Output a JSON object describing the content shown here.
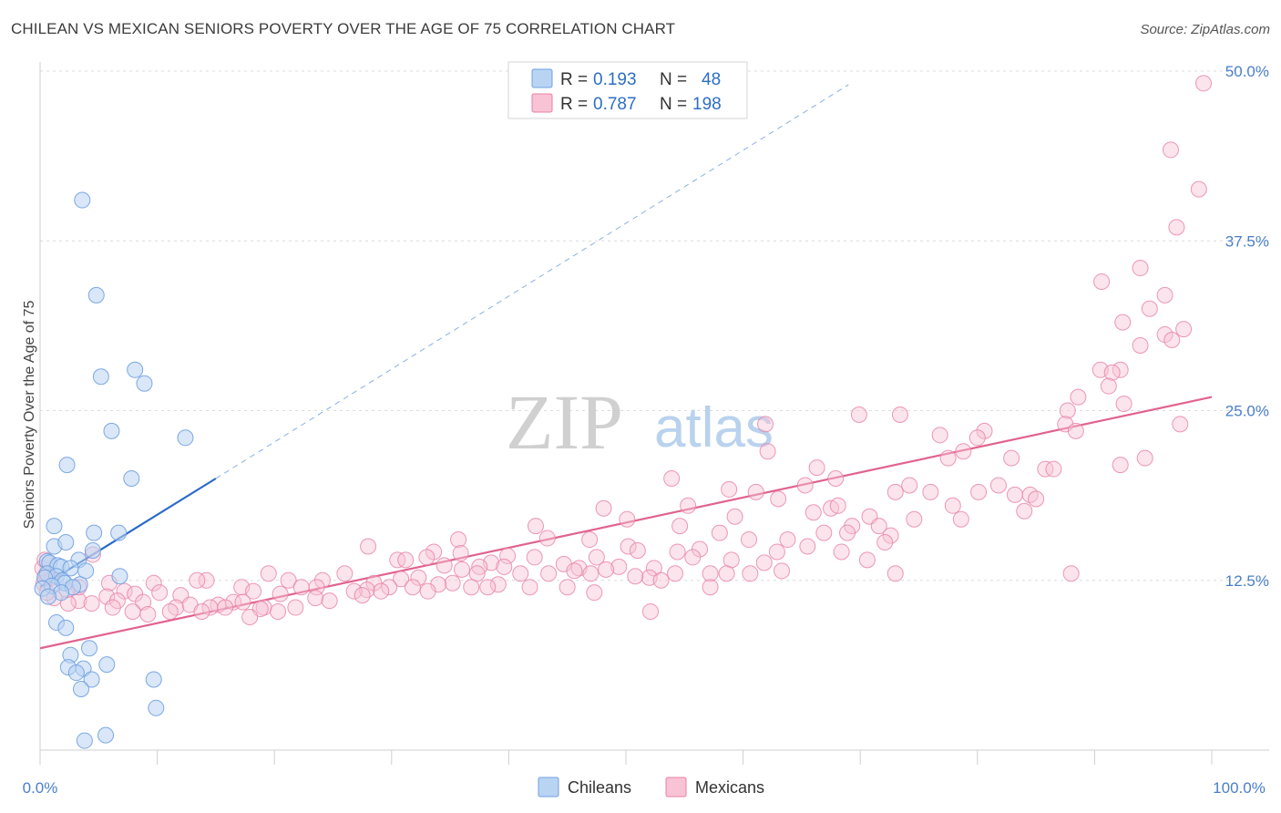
{
  "title": "CHILEAN VS MEXICAN SENIORS POVERTY OVER THE AGE OF 75 CORRELATION CHART",
  "source": "Source: ZipAtlas.com",
  "watermark": {
    "left": "ZIP",
    "right": "atlas"
  },
  "colors": {
    "chileans": "#6fa0e0",
    "chileans_fill": "#b9d4f3",
    "mexicans": "#e87fa5",
    "mexicans_fill": "#f7c3d5",
    "blue_line": "#2b6bc9",
    "pink_line": "#e0638f",
    "tick": "#4a7fc8"
  },
  "legend": [
    {
      "r_label": "R =",
      "r_value": "0.193",
      "n_label": "N =",
      "n_value": "48"
    },
    {
      "r_label": "R =",
      "r_value": "0.787",
      "n_label": "N =",
      "n_value": "198"
    }
  ],
  "bottom_legend": [
    "Chileans",
    "Mexicans"
  ],
  "chart_data": {
    "type": "scatter",
    "title": "CHILEAN VS MEXICAN SENIORS POVERTY OVER THE AGE OF 75 CORRELATION CHART",
    "xlabel": "",
    "ylabel": "Seniors Poverty Over the Age of 75",
    "xlim": [
      0,
      100
    ],
    "ylim": [
      0,
      50
    ],
    "x_tick_labels": [
      "0.0%",
      "100.0%"
    ],
    "y_tick_labels": [
      "12.5%",
      "25.0%",
      "37.5%",
      "50.0%"
    ],
    "y_ticks": [
      12.5,
      25,
      37.5,
      50
    ],
    "grid": true,
    "legend_position": "top-center",
    "series": [
      {
        "name": "Chileans",
        "r": 0.193,
        "n": 48,
        "trend": {
          "x": [
            0,
            15
          ],
          "y": [
            12.0,
            20.0
          ],
          "extended_to": [
            69,
            49.0
          ]
        },
        "points": [
          [
            3.6,
            40.5
          ],
          [
            4.8,
            33.5
          ],
          [
            5.2,
            27.5
          ],
          [
            8.1,
            28.0
          ],
          [
            8.9,
            27.0
          ],
          [
            6.1,
            23.5
          ],
          [
            12.4,
            23.0
          ],
          [
            2.3,
            21.0
          ],
          [
            7.8,
            20.0
          ],
          [
            1.2,
            16.5
          ],
          [
            4.6,
            16.0
          ],
          [
            6.7,
            16.0
          ],
          [
            1.2,
            15.0
          ],
          [
            2.2,
            15.3
          ],
          [
            4.5,
            14.7
          ],
          [
            3.3,
            14.0
          ],
          [
            0.6,
            13.9
          ],
          [
            0.8,
            13.8
          ],
          [
            1.5,
            13.6
          ],
          [
            1.8,
            13.5
          ],
          [
            2.6,
            13.4
          ],
          [
            3.9,
            13.2
          ],
          [
            0.6,
            13.0
          ],
          [
            1.4,
            12.8
          ],
          [
            6.8,
            12.8
          ],
          [
            0.4,
            12.7
          ],
          [
            1.9,
            12.5
          ],
          [
            2.1,
            12.3
          ],
          [
            3.4,
            12.2
          ],
          [
            1.0,
            12.1
          ],
          [
            2.8,
            12.0
          ],
          [
            0.2,
            11.9
          ],
          [
            1.8,
            11.6
          ],
          [
            0.7,
            11.3
          ],
          [
            1.4,
            9.4
          ],
          [
            2.2,
            9.0
          ],
          [
            4.2,
            7.5
          ],
          [
            2.6,
            7.0
          ],
          [
            5.7,
            6.3
          ],
          [
            2.4,
            6.1
          ],
          [
            3.7,
            6.0
          ],
          [
            3.1,
            5.7
          ],
          [
            4.4,
            5.2
          ],
          [
            9.7,
            5.2
          ],
          [
            3.5,
            4.5
          ],
          [
            9.9,
            3.1
          ],
          [
            5.6,
            1.1
          ],
          [
            3.8,
            0.7
          ]
        ]
      },
      {
        "name": "Mexicans",
        "r": 0.787,
        "n": 198,
        "trend": {
          "x": [
            0,
            100
          ],
          "y": [
            7.5,
            26.0
          ]
        },
        "points": [
          [
            99.3,
            49.1
          ],
          [
            96.5,
            44.2
          ],
          [
            98.9,
            41.3
          ],
          [
            97.0,
            38.5
          ],
          [
            93.9,
            35.5
          ],
          [
            90.6,
            34.5
          ],
          [
            96.0,
            33.5
          ],
          [
            94.7,
            32.5
          ],
          [
            92.4,
            31.5
          ],
          [
            97.6,
            31.0
          ],
          [
            96.0,
            30.6
          ],
          [
            96.6,
            30.2
          ],
          [
            93.9,
            29.8
          ],
          [
            92.2,
            28.0
          ],
          [
            90.5,
            28.0
          ],
          [
            91.5,
            27.8
          ],
          [
            91.2,
            26.8
          ],
          [
            88.6,
            26.0
          ],
          [
            87.7,
            25.0
          ],
          [
            92.5,
            25.5
          ],
          [
            69.9,
            24.7
          ],
          [
            73.4,
            24.7
          ],
          [
            61.9,
            24.0
          ],
          [
            87.5,
            24.0
          ],
          [
            97.3,
            24.0
          ],
          [
            88.4,
            23.5
          ],
          [
            80.6,
            23.5
          ],
          [
            76.8,
            23.2
          ],
          [
            80.0,
            23.0
          ],
          [
            78.8,
            22.0
          ],
          [
            62.1,
            22.0
          ],
          [
            77.5,
            21.5
          ],
          [
            82.9,
            21.5
          ],
          [
            94.3,
            21.5
          ],
          [
            92.2,
            21.0
          ],
          [
            66.3,
            20.8
          ],
          [
            85.8,
            20.7
          ],
          [
            86.5,
            20.7
          ],
          [
            67.9,
            20.0
          ],
          [
            81.8,
            19.5
          ],
          [
            74.2,
            19.5
          ],
          [
            53.9,
            20.0
          ],
          [
            65.3,
            19.5
          ],
          [
            73.0,
            19.0
          ],
          [
            80.1,
            19.0
          ],
          [
            76.0,
            19.0
          ],
          [
            83.2,
            18.8
          ],
          [
            84.5,
            18.8
          ],
          [
            77.9,
            18.0
          ],
          [
            85.0,
            18.5
          ],
          [
            58.8,
            19.2
          ],
          [
            61.1,
            19.0
          ],
          [
            63.0,
            18.5
          ],
          [
            67.5,
            17.8
          ],
          [
            68.1,
            18.0
          ],
          [
            55.3,
            18.0
          ],
          [
            48.1,
            17.8
          ],
          [
            84.0,
            17.6
          ],
          [
            74.6,
            17.0
          ],
          [
            78.6,
            17.0
          ],
          [
            70.8,
            17.2
          ],
          [
            66.0,
            17.5
          ],
          [
            59.3,
            17.2
          ],
          [
            50.1,
            17.0
          ],
          [
            54.6,
            16.5
          ],
          [
            71.6,
            16.5
          ],
          [
            69.3,
            16.5
          ],
          [
            42.3,
            16.5
          ],
          [
            66.9,
            16.0
          ],
          [
            68.9,
            16.0
          ],
          [
            72.6,
            15.8
          ],
          [
            58.0,
            16.0
          ],
          [
            60.5,
            15.5
          ],
          [
            43.3,
            15.6
          ],
          [
            63.8,
            15.5
          ],
          [
            35.7,
            15.5
          ],
          [
            46.9,
            15.5
          ],
          [
            72.1,
            15.3
          ],
          [
            50.2,
            15.0
          ],
          [
            65.5,
            15.0
          ],
          [
            56.3,
            14.8
          ],
          [
            28.0,
            15.0
          ],
          [
            51.0,
            14.7
          ],
          [
            62.9,
            14.6
          ],
          [
            68.4,
            14.6
          ],
          [
            54.4,
            14.6
          ],
          [
            33.6,
            14.6
          ],
          [
            35.9,
            14.5
          ],
          [
            33.0,
            14.2
          ],
          [
            39.9,
            14.3
          ],
          [
            47.5,
            14.2
          ],
          [
            30.5,
            14.0
          ],
          [
            31.2,
            14.0
          ],
          [
            42.2,
            14.2
          ],
          [
            55.7,
            14.2
          ],
          [
            59.0,
            14.0
          ],
          [
            61.8,
            13.8
          ],
          [
            70.6,
            14.0
          ],
          [
            38.5,
            13.8
          ],
          [
            34.5,
            13.6
          ],
          [
            44.7,
            13.7
          ],
          [
            37.5,
            13.5
          ],
          [
            39.6,
            13.5
          ],
          [
            36.0,
            13.3
          ],
          [
            52.4,
            13.4
          ],
          [
            49.4,
            13.5
          ],
          [
            48.3,
            13.3
          ],
          [
            46.0,
            13.4
          ],
          [
            47.0,
            13.0
          ],
          [
            41.0,
            13.0
          ],
          [
            43.4,
            13.0
          ],
          [
            45.6,
            13.2
          ],
          [
            37.3,
            13.0
          ],
          [
            54.2,
            13.0
          ],
          [
            57.2,
            13.0
          ],
          [
            58.6,
            13.0
          ],
          [
            63.3,
            13.2
          ],
          [
            60.6,
            13.0
          ],
          [
            19.5,
            13.0
          ],
          [
            26.0,
            13.0
          ],
          [
            32.3,
            12.7
          ],
          [
            52.0,
            12.7
          ],
          [
            50.8,
            12.8
          ],
          [
            53.0,
            12.5
          ],
          [
            14.2,
            12.5
          ],
          [
            24.1,
            12.5
          ],
          [
            21.2,
            12.5
          ],
          [
            30.8,
            12.6
          ],
          [
            28.5,
            12.3
          ],
          [
            35.2,
            12.3
          ],
          [
            39.1,
            12.2
          ],
          [
            34.0,
            12.2
          ],
          [
            38.2,
            12.0
          ],
          [
            41.8,
            12.0
          ],
          [
            45.0,
            12.0
          ],
          [
            23.6,
            12.0
          ],
          [
            29.8,
            12.0
          ],
          [
            31.8,
            12.0
          ],
          [
            36.8,
            12.0
          ],
          [
            9.7,
            12.3
          ],
          [
            5.9,
            12.3
          ],
          [
            13.4,
            12.5
          ],
          [
            17.2,
            12.0
          ],
          [
            22.3,
            12.0
          ],
          [
            27.9,
            11.8
          ],
          [
            33.1,
            11.7
          ],
          [
            29.1,
            11.7
          ],
          [
            26.8,
            11.7
          ],
          [
            18.2,
            11.7
          ],
          [
            7.2,
            11.7
          ],
          [
            8.1,
            11.5
          ],
          [
            10.2,
            11.6
          ],
          [
            12.0,
            11.4
          ],
          [
            20.5,
            11.5
          ],
          [
            23.5,
            11.2
          ],
          [
            27.5,
            11.4
          ],
          [
            5.7,
            11.3
          ],
          [
            6.6,
            11.0
          ],
          [
            3.3,
            11.0
          ],
          [
            4.4,
            10.8
          ],
          [
            8.8,
            10.9
          ],
          [
            11.6,
            10.5
          ],
          [
            15.2,
            10.7
          ],
          [
            16.5,
            10.9
          ],
          [
            17.3,
            10.9
          ],
          [
            14.5,
            10.5
          ],
          [
            19.1,
            10.5
          ],
          [
            20.3,
            10.2
          ],
          [
            21.8,
            10.5
          ],
          [
            24.7,
            11.0
          ],
          [
            12.8,
            10.7
          ],
          [
            15.8,
            10.5
          ],
          [
            18.8,
            10.4
          ],
          [
            13.8,
            10.2
          ],
          [
            2.4,
            10.8
          ],
          [
            6.2,
            10.5
          ],
          [
            7.9,
            10.2
          ],
          [
            9.2,
            10.0
          ],
          [
            11.1,
            10.2
          ],
          [
            1.2,
            11.2
          ],
          [
            0.3,
            12.3
          ],
          [
            0.6,
            11.6
          ],
          [
            1.0,
            12.7
          ],
          [
            0.2,
            13.4
          ],
          [
            0.4,
            14.0
          ],
          [
            0.5,
            12.9
          ],
          [
            17.9,
            9.8
          ],
          [
            4.5,
            14.4
          ],
          [
            3.3,
            12.0
          ],
          [
            2.3,
            11.8
          ],
          [
            73.0,
            13.0
          ],
          [
            88.0,
            13.0
          ],
          [
            57.2,
            12.0
          ],
          [
            47.3,
            11.6
          ],
          [
            52.1,
            10.2
          ]
        ]
      }
    ]
  }
}
